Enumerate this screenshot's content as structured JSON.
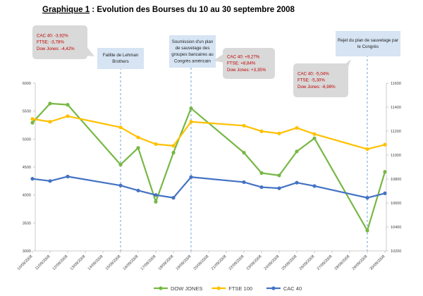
{
  "page": {
    "title_prefix": "Graphique 1",
    "title_rest": " : Evolution des Bourses du 10 au 30 septembre 2008"
  },
  "colors": {
    "dow": "#77b844",
    "ftse": "#ffc000",
    "cac": "#4472c4",
    "event_line": "#5b9bd5",
    "callout_grey": "#d9d9d9",
    "callout_blue": "#d6e4f3",
    "callout_text_red": "#c00000"
  },
  "callouts": [
    {
      "id": "cac-ftse-dow-1",
      "style": "grey",
      "lines": [
        "CAC 40: -3,92%",
        "FTSE: -3,78%",
        "Dow Jones: -4,42%"
      ]
    },
    {
      "id": "lehman",
      "style": "blue",
      "lines": [
        "Faillite de Lehman",
        "Brothers"
      ]
    },
    {
      "id": "plan",
      "style": "blue",
      "lines": [
        "Soumission d'un plan",
        "de sauvetage des",
        "groupes bancaires au",
        "Congrès américain"
      ]
    },
    {
      "id": "cac-ftse-dow-2",
      "style": "grey",
      "lines": [
        "CAC 40: +9,27%",
        "FTSE: +8,84%",
        "Dow Jones: +3,35%"
      ]
    },
    {
      "id": "rejet",
      "style": "blue",
      "lines": [
        "Rejet du plan de sauvetage par",
        "le Congrès"
      ]
    },
    {
      "id": "cac-ftse-dow-3",
      "style": "grey",
      "lines": [
        "CAC 40: -5,04%",
        "FTSE: -5,30%",
        "Dow Jones: -6,98%"
      ]
    }
  ],
  "chart_data": {
    "type": "line",
    "x": [
      "10/09/2008",
      "11/09/2008",
      "12/09/2008",
      "13/09/2008",
      "14/09/2008",
      "15/09/2008",
      "16/09/2008",
      "17/09/2008",
      "18/09/2008",
      "19/09/2008",
      "20/09/2008",
      "21/09/2008",
      "22/09/2008",
      "23/09/2008",
      "24/09/2008",
      "25/09/2008",
      "26/09/2008",
      "27/09/2008",
      "28/09/2008",
      "29/09/2008",
      "30/09/2008"
    ],
    "left_axis": {
      "ylim": [
        3000,
        6000
      ],
      "ticks": [
        3000,
        3500,
        4000,
        4500,
        5000,
        5500,
        6000
      ]
    },
    "right_axis": {
      "ylim": [
        10200,
        11600
      ],
      "ticks": [
        10200,
        10400,
        10600,
        10800,
        11000,
        11200,
        11400,
        11600
      ]
    },
    "series": [
      {
        "name": "DOW JONES",
        "axis": "right",
        "color_key": "dow",
        "points": [
          [
            "10/09/2008",
            11270
          ],
          [
            "11/09/2008",
            11430
          ],
          [
            "12/09/2008",
            11420
          ],
          [
            "15/09/2008",
            10920
          ],
          [
            "16/09/2008",
            11060
          ],
          [
            "17/09/2008",
            10610
          ],
          [
            "18/09/2008",
            11020
          ],
          [
            "19/09/2008",
            11390
          ],
          [
            "22/09/2008",
            11020
          ],
          [
            "23/09/2008",
            10850
          ],
          [
            "24/09/2008",
            10830
          ],
          [
            "25/09/2008",
            11030
          ],
          [
            "26/09/2008",
            11140
          ],
          [
            "29/09/2008",
            10370
          ],
          [
            "30/09/2008",
            10860
          ]
        ]
      },
      {
        "name": "FTSE 100",
        "axis": "left",
        "color_key": "ftse",
        "points": [
          [
            "10/09/2008",
            5360
          ],
          [
            "11/09/2008",
            5310
          ],
          [
            "12/09/2008",
            5410
          ],
          [
            "15/09/2008",
            5210
          ],
          [
            "16/09/2008",
            5030
          ],
          [
            "17/09/2008",
            4910
          ],
          [
            "18/09/2008",
            4880
          ],
          [
            "19/09/2008",
            5310
          ],
          [
            "22/09/2008",
            5240
          ],
          [
            "23/09/2008",
            5140
          ],
          [
            "24/09/2008",
            5100
          ],
          [
            "25/09/2008",
            5200
          ],
          [
            "26/09/2008",
            5090
          ],
          [
            "29/09/2008",
            4820
          ],
          [
            "30/09/2008",
            4900
          ]
        ]
      },
      {
        "name": "CAC 40",
        "axis": "left",
        "color_key": "cac",
        "points": [
          [
            "10/09/2008",
            4290
          ],
          [
            "11/09/2008",
            4250
          ],
          [
            "12/09/2008",
            4330
          ],
          [
            "15/09/2008",
            4170
          ],
          [
            "16/09/2008",
            4080
          ],
          [
            "17/09/2008",
            4000
          ],
          [
            "18/09/2008",
            3950
          ],
          [
            "19/09/2008",
            4320
          ],
          [
            "22/09/2008",
            4230
          ],
          [
            "23/09/2008",
            4140
          ],
          [
            "24/09/2008",
            4120
          ],
          [
            "25/09/2008",
            4220
          ],
          [
            "26/09/2008",
            4160
          ],
          [
            "29/09/2008",
            3950
          ],
          [
            "30/09/2008",
            4030
          ]
        ]
      }
    ],
    "event_dates": [
      "15/09/2008",
      "19/09/2008",
      "29/09/2008"
    ],
    "legend_placement": "bottom-center",
    "grid": false
  }
}
